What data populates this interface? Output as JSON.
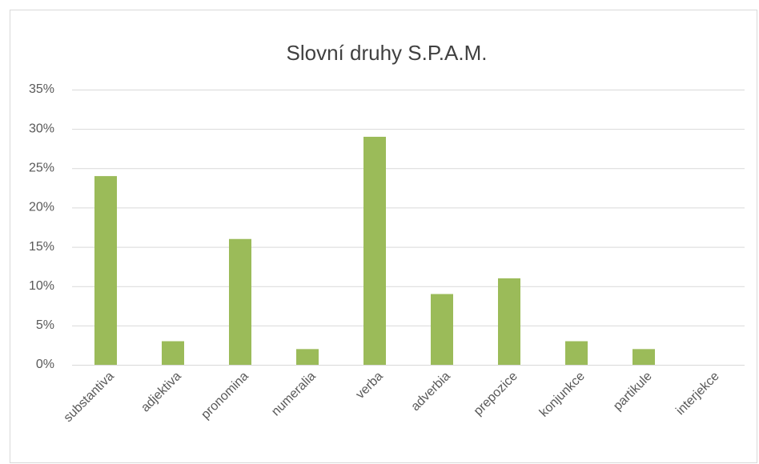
{
  "chart_data": {
    "type": "bar",
    "title": "Slovní druhy S.P.A.M.",
    "categories": [
      "substantiva",
      "adjektiva",
      "pronomina",
      "numeralia",
      "verba",
      "adverbia",
      "prepozice",
      "konjunkce",
      "partikule",
      "interjekce"
    ],
    "values": [
      24,
      3,
      16,
      2,
      29,
      9,
      11,
      3,
      2,
      0
    ],
    "color": "#9bbb59",
    "ylim": [
      0,
      35
    ],
    "yticks": [
      {
        "value": 0,
        "label": "0%"
      },
      {
        "value": 5,
        "label": "5%"
      },
      {
        "value": 10,
        "label": "10%"
      },
      {
        "value": 15,
        "label": "15%"
      },
      {
        "value": 20,
        "label": "20%"
      },
      {
        "value": 25,
        "label": "25%"
      },
      {
        "value": 30,
        "label": "30%"
      },
      {
        "value": 35,
        "label": "35%"
      }
    ],
    "grid": true
  }
}
